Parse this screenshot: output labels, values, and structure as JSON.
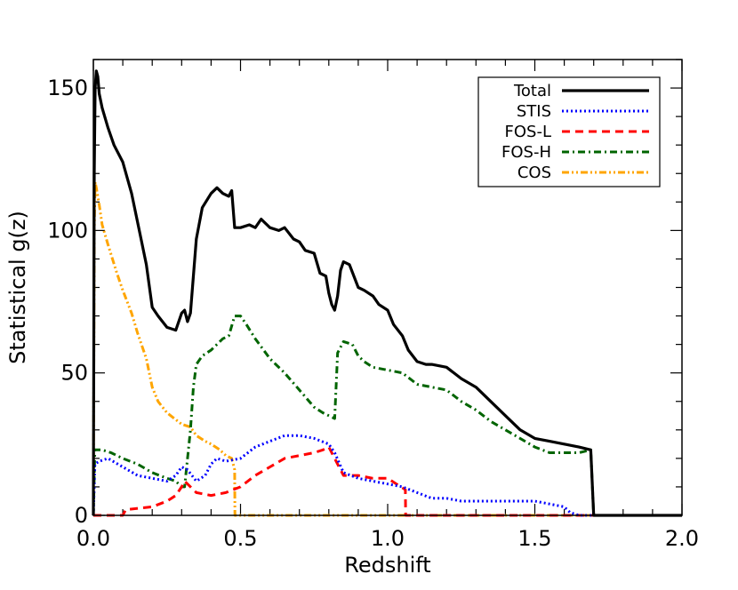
{
  "chart_data": {
    "type": "line",
    "xlabel": "Redshift",
    "ylabel": "Statistical g(z)",
    "xlim": [
      0.0,
      2.0
    ],
    "ylim": [
      0,
      160
    ],
    "x_ticks": [
      {
        "value": 0.0,
        "label": "0.0"
      },
      {
        "value": 0.5,
        "label": "0.5"
      },
      {
        "value": 1.0,
        "label": "1.0"
      },
      {
        "value": 1.5,
        "label": "1.5"
      },
      {
        "value": 2.0,
        "label": "2.0"
      }
    ],
    "y_ticks": [
      {
        "value": 0,
        "label": "0"
      },
      {
        "value": 50,
        "label": "50"
      },
      {
        "value": 100,
        "label": "100"
      },
      {
        "value": 150,
        "label": "150"
      }
    ],
    "x_minor_step": 0.1,
    "y_minor_step": 10,
    "legend_position": "top-right",
    "series": [
      {
        "name": "Total",
        "color": "#000000",
        "dash": "solid",
        "x": [
          0.0,
          0.003,
          0.006,
          0.01,
          0.015,
          0.02,
          0.03,
          0.05,
          0.07,
          0.1,
          0.13,
          0.16,
          0.18,
          0.2,
          0.22,
          0.25,
          0.28,
          0.3,
          0.31,
          0.32,
          0.33,
          0.35,
          0.37,
          0.4,
          0.42,
          0.44,
          0.46,
          0.47,
          0.48,
          0.5,
          0.53,
          0.55,
          0.57,
          0.6,
          0.63,
          0.65,
          0.68,
          0.7,
          0.72,
          0.75,
          0.77,
          0.79,
          0.8,
          0.81,
          0.82,
          0.83,
          0.84,
          0.85,
          0.87,
          0.9,
          0.92,
          0.95,
          0.97,
          1.0,
          1.02,
          1.05,
          1.07,
          1.1,
          1.13,
          1.15,
          1.2,
          1.25,
          1.3,
          1.35,
          1.4,
          1.45,
          1.5,
          1.55,
          1.6,
          1.65,
          1.69,
          1.7,
          1.8,
          1.9,
          2.0
        ],
        "y": [
          0,
          120,
          150,
          156,
          154,
          148,
          143,
          136,
          130,
          124,
          113,
          98,
          88,
          73,
          70,
          66,
          65,
          71,
          72,
          68,
          71,
          97,
          108,
          113,
          115,
          113,
          112,
          114,
          101,
          101,
          102,
          101,
          104,
          101,
          100,
          101,
          97,
          96,
          93,
          92,
          85,
          84,
          78,
          74,
          72,
          77,
          86,
          89,
          88,
          80,
          79,
          77,
          74,
          72,
          67,
          63,
          58,
          54,
          53,
          53,
          52,
          48,
          45,
          40,
          35,
          30,
          27,
          26,
          25,
          24,
          23,
          0,
          0,
          0,
          0
        ]
      },
      {
        "name": "STIS",
        "color": "#0000ff",
        "dash": "dotted",
        "x": [
          0.0,
          0.005,
          0.02,
          0.05,
          0.1,
          0.15,
          0.2,
          0.25,
          0.28,
          0.3,
          0.32,
          0.35,
          0.38,
          0.4,
          0.42,
          0.45,
          0.5,
          0.55,
          0.6,
          0.65,
          0.7,
          0.75,
          0.8,
          0.82,
          0.85,
          0.9,
          0.95,
          1.0,
          1.05,
          1.1,
          1.15,
          1.2,
          1.25,
          1.3,
          1.4,
          1.5,
          1.55,
          1.6,
          1.62,
          1.65,
          1.7,
          1.8,
          2.0
        ],
        "y": [
          0,
          18,
          19,
          20,
          17,
          14,
          13,
          12,
          14,
          17,
          16,
          12,
          14,
          18,
          20,
          19,
          20,
          24,
          26,
          28,
          28,
          27,
          25,
          22,
          15,
          13,
          12,
          11,
          10,
          8,
          6,
          6,
          5,
          5,
          5,
          5,
          4,
          3,
          1,
          0,
          0,
          0,
          0
        ]
      },
      {
        "name": "FOS-L",
        "color": "#ff0000",
        "dash": "dashed",
        "x": [
          0.0,
          0.1,
          0.11,
          0.2,
          0.25,
          0.28,
          0.3,
          0.31,
          0.33,
          0.35,
          0.4,
          0.45,
          0.5,
          0.55,
          0.6,
          0.65,
          0.7,
          0.75,
          0.78,
          0.8,
          0.82,
          0.85,
          0.9,
          0.95,
          1.0,
          1.03,
          1.06,
          1.061,
          1.1,
          1.5,
          2.0
        ],
        "y": [
          0,
          0,
          2,
          3,
          5,
          7,
          10,
          12,
          10,
          8,
          7,
          8,
          10,
          14,
          17,
          20,
          21,
          22,
          23,
          24,
          20,
          14,
          14,
          13,
          13,
          11,
          9,
          0,
          0,
          0,
          0
        ]
      },
      {
        "name": "FOS-H",
        "color": "#006400",
        "dash": "dashdot",
        "x": [
          0.0,
          0.005,
          0.03,
          0.06,
          0.1,
          0.15,
          0.2,
          0.25,
          0.28,
          0.3,
          0.31,
          0.32,
          0.33,
          0.34,
          0.35,
          0.37,
          0.4,
          0.42,
          0.44,
          0.46,
          0.48,
          0.5,
          0.52,
          0.55,
          0.6,
          0.65,
          0.7,
          0.75,
          0.78,
          0.8,
          0.82,
          0.83,
          0.85,
          0.88,
          0.9,
          0.92,
          0.95,
          1.0,
          1.05,
          1.1,
          1.15,
          1.2,
          1.25,
          1.3,
          1.35,
          1.4,
          1.45,
          1.5,
          1.55,
          1.6,
          1.65,
          1.69,
          1.7,
          1.8,
          2.0
        ],
        "y": [
          0,
          23,
          23,
          22,
          20,
          18,
          15,
          13,
          12,
          10,
          10,
          20,
          30,
          45,
          53,
          56,
          58,
          60,
          62,
          63,
          70,
          70,
          67,
          62,
          55,
          50,
          44,
          38,
          36,
          35,
          34,
          57,
          61,
          60,
          56,
          54,
          52,
          51,
          50,
          46,
          45,
          44,
          40,
          37,
          33,
          30,
          27,
          24,
          22,
          22,
          22,
          23,
          0,
          0,
          0
        ]
      },
      {
        "name": "COS",
        "color": "#ffa500",
        "dash": "dashdotdot",
        "x": [
          0.0,
          0.003,
          0.006,
          0.01,
          0.02,
          0.03,
          0.05,
          0.08,
          0.1,
          0.13,
          0.15,
          0.18,
          0.2,
          0.22,
          0.25,
          0.3,
          0.33,
          0.35,
          0.38,
          0.4,
          0.43,
          0.45,
          0.47,
          0.48,
          0.481,
          0.5,
          0.6,
          0.8,
          1.0,
          1.5,
          2.0
        ],
        "y": [
          0,
          100,
          117,
          115,
          109,
          102,
          95,
          85,
          79,
          71,
          64,
          55,
          45,
          40,
          36,
          32,
          31,
          28,
          26,
          25,
          23,
          21,
          20,
          16,
          0,
          0,
          0,
          0,
          0,
          0,
          0
        ]
      }
    ]
  }
}
